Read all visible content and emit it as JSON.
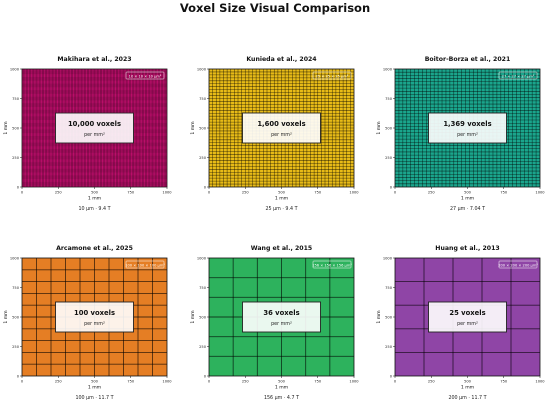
{
  "title": "Voxel Size Visual Comparison",
  "axis_label": "1 mm",
  "per_label": "per mm²",
  "ticks": [
    "0",
    "250",
    "500",
    "750",
    "1000"
  ],
  "chart_data": [
    {
      "type": "heatmap",
      "title": "Makihara et al., 2023",
      "voxel_um": 10,
      "grid_n": 100,
      "voxel_count": 10000,
      "box_text": "10,000 voxels",
      "badge": "10 × 10 × 10 μm³",
      "caption": "10 μm · 9.4 T",
      "color": "#e0117f",
      "xlabel": "1 mm",
      "ylabel": "1 mm",
      "xlim": [
        0,
        1000
      ],
      "ylim": [
        0,
        1000
      ]
    },
    {
      "type": "heatmap",
      "title": "Kunieda et al., 2024",
      "voxel_um": 25,
      "grid_n": 40,
      "voxel_count": 1600,
      "box_text": "1,600 voxels",
      "badge": "25 × 25 × 25 μm³",
      "caption": "25 μm · 9.4 T",
      "color": "#e8bb17",
      "xlabel": "1 mm",
      "ylabel": "1 mm",
      "xlim": [
        0,
        1000
      ],
      "ylim": [
        0,
        1000
      ]
    },
    {
      "type": "heatmap",
      "title": "Boitor-Borza et al., 2021",
      "voxel_um": 27,
      "grid_n": 37,
      "voxel_count": 1369,
      "box_text": "1,369 voxels",
      "badge": "27 × 27 × 27 μm³",
      "caption": "27 μm · 7.04 T",
      "color": "#1aa58c",
      "xlabel": "1 mm",
      "ylabel": "1 mm",
      "xlim": [
        0,
        1000
      ],
      "ylim": [
        0,
        1000
      ]
    },
    {
      "type": "heatmap",
      "title": "Arcamone et al., 2025",
      "voxel_um": 100,
      "grid_n": 10,
      "voxel_count": 100,
      "box_text": "100 voxels",
      "badge": "100 × 100 × 100 μm³",
      "caption": "100 μm · 11.7 T",
      "color": "#e57e24",
      "xlabel": "1 mm",
      "ylabel": "1 mm",
      "xlim": [
        0,
        1000
      ],
      "ylim": [
        0,
        1000
      ]
    },
    {
      "type": "heatmap",
      "title": "Wang et al., 2015",
      "voxel_um": 156,
      "grid_n": 6,
      "voxel_count": 36,
      "box_text": "36 voxels",
      "badge": "156 × 156 × 156 μm³",
      "caption": "156 μm · 4.7 T",
      "color": "#2db25d",
      "xlabel": "1 mm",
      "ylabel": "1 mm",
      "xlim": [
        0,
        1000
      ],
      "ylim": [
        0,
        1000
      ]
    },
    {
      "type": "heatmap",
      "title": "Huang et al., 2013",
      "voxel_um": 200,
      "grid_n": 5,
      "voxel_count": 25,
      "box_text": "25 voxels",
      "badge": "200 × 200 × 200 μm³",
      "caption": "200 μm · 11.7 T",
      "color": "#8f45a6",
      "xlabel": "1 mm",
      "ylabel": "1 mm",
      "xlim": [
        0,
        1000
      ],
      "ylim": [
        0,
        1000
      ]
    }
  ]
}
